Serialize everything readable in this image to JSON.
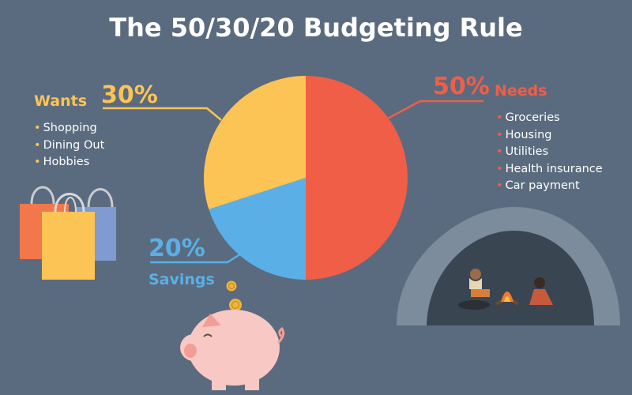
{
  "title": "The 50/30/20 Budgeting Rule",
  "colors": {
    "background": "#5a6b7f",
    "needs": "#f05e47",
    "wants": "#fcc455",
    "savings": "#5ab0e6"
  },
  "chart_data": {
    "type": "pie",
    "title": "The 50/30/20 Budgeting Rule",
    "slices": [
      {
        "label": "Needs",
        "value": 50,
        "display": "50%",
        "color": "#f05e47",
        "items": [
          "Groceries",
          "Housing",
          "Utilities",
          "Health insurance",
          "Car payment"
        ]
      },
      {
        "label": "Savings",
        "value": 20,
        "display": "20%",
        "color": "#5ab0e6",
        "items": []
      },
      {
        "label": "Wants",
        "value": 30,
        "display": "30%",
        "color": "#fcc455",
        "items": [
          "Shopping",
          "Dining Out",
          "Hobbies"
        ]
      }
    ],
    "legend": "none"
  },
  "illustrations": {
    "shopping_bags": "shopping-bags-icon",
    "piggy_bank": "piggy-bank-icon",
    "coins": "coin-icon",
    "cave_scene": "cave-campfire-illustration"
  }
}
